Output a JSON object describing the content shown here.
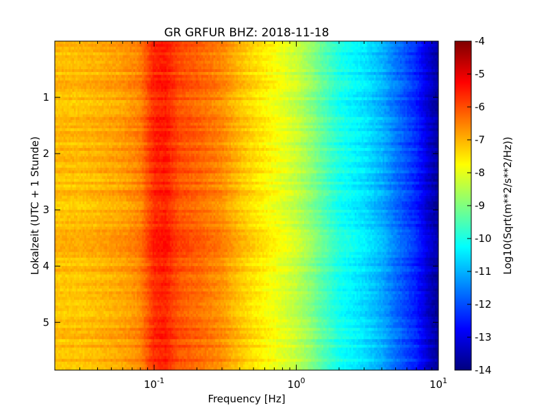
{
  "chart_data": {
    "type": "heatmap",
    "title": "GR GRFUR BHZ: 2018-11-18",
    "xlabel": "Frequency [Hz]",
    "ylabel": "Lokalzeit (UTC + 1 Stunde)",
    "x_scale": "log",
    "x_range": [
      0.02,
      10
    ],
    "x_ticks": [
      {
        "value": 0.1,
        "base": "10",
        "exp": "-1"
      },
      {
        "value": 1,
        "base": "10",
        "exp": "0"
      },
      {
        "value": 10,
        "base": "10",
        "exp": "1"
      }
    ],
    "y_range": [
      0,
      5.85
    ],
    "y_inverted": true,
    "y_ticks": [
      "1",
      "2",
      "3",
      "4",
      "5"
    ],
    "colorbar": {
      "label": "Log10(Sqrt(m**2/s**2/Hz))",
      "colormap": "jet",
      "range": [
        -14,
        -4
      ],
      "ticks": [
        "-4",
        "-5",
        "-6",
        "-7",
        "-8",
        "-9",
        "-10",
        "-11",
        "-12",
        "-13",
        "-14"
      ]
    },
    "spectrum_profile": {
      "frequency_hz": [
        0.02,
        0.03,
        0.04,
        0.06,
        0.08,
        0.1,
        0.12,
        0.15,
        0.2,
        0.3,
        0.4,
        0.5,
        0.7,
        1.0,
        1.3,
        1.5,
        2.0,
        3.0,
        4.0,
        5.0,
        7.0,
        8.5,
        10.0
      ],
      "value_log10": [
        -7.1,
        -7.1,
        -7.0,
        -6.8,
        -6.5,
        -5.6,
        -5.5,
        -6.0,
        -6.2,
        -6.6,
        -7.1,
        -7.4,
        -7.8,
        -8.3,
        -8.9,
        -9.3,
        -10.0,
        -10.5,
        -11.0,
        -11.6,
        -12.4,
        -13.2,
        -13.7
      ]
    }
  }
}
